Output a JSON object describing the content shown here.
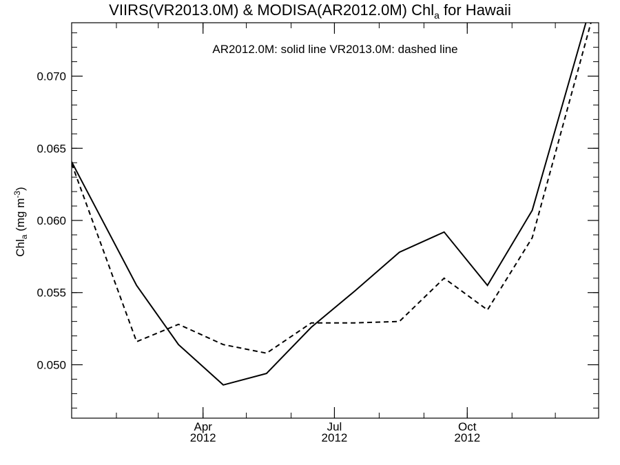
{
  "title": {
    "main": "VIIRS(VR2013.0M) & MODISA(AR2012.0M)  Chl",
    "subscript": "a",
    "suffix": " for Hawaii"
  },
  "legend_note": "AR2012.0M: solid line   VR2013.0M: dashed line",
  "ylabel": {
    "prefix": "Chl",
    "subscript": "a",
    "middle": " (mg m",
    "superscript": "-3",
    "suffix": ")"
  },
  "chart_data": {
    "type": "line",
    "x": [
      "2012-01-15",
      "2012-02-15",
      "2012-03-15",
      "2012-04-15",
      "2012-05-15",
      "2012-06-15",
      "2012-07-15",
      "2012-08-15",
      "2012-09-15",
      "2012-10-15",
      "2012-11-15",
      "2012-12-15"
    ],
    "series": [
      {
        "name": "AR2012.0M",
        "style": "solid",
        "values": [
          0.0614,
          0.0555,
          0.0514,
          0.0486,
          0.0494,
          0.0526,
          0.0551,
          0.0578,
          0.0592,
          0.0555,
          0.0607,
          0.0712
        ]
      },
      {
        "name": "VR2013.0M",
        "style": "dashed",
        "values": [
          0.0601,
          0.0516,
          0.0528,
          0.0514,
          0.0508,
          0.0529,
          0.0529,
          0.053,
          0.056,
          0.0538,
          0.0588,
          0.0698
        ]
      }
    ],
    "xlim": [
      "2012-01-01",
      "2012-12-31"
    ],
    "ylim": [
      0.0463,
      0.0737
    ],
    "y_ticks": [
      "0.050",
      "0.055",
      "0.060",
      "0.065",
      "0.070"
    ],
    "x_tick_labels": [
      {
        "date": "2012-04-01",
        "month": "Apr",
        "year": "2012"
      },
      {
        "date": "2012-07-01",
        "month": "Jul",
        "year": "2012"
      },
      {
        "date": "2012-10-01",
        "month": "Oct",
        "year": "2012"
      }
    ],
    "grid": false,
    "colors": {
      "line": "#000000",
      "axis": "#000000",
      "background": "#ffffff"
    }
  }
}
